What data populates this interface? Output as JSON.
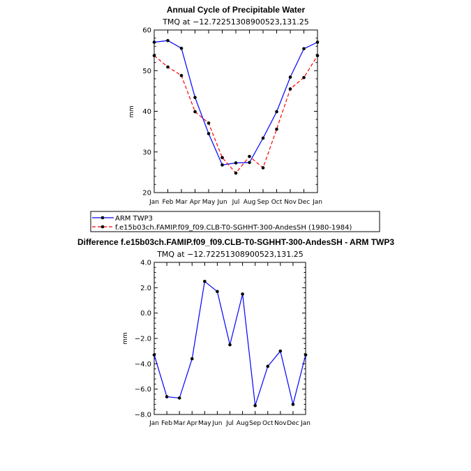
{
  "chart_data": [
    {
      "type": "line",
      "title": "Annual Cycle of Precipitable Water",
      "subtitle": "TMQ at −12.72251308900523,131.25",
      "ylabel": "mm",
      "ylim": [
        20,
        60
      ],
      "yticks": [
        "20",
        "30",
        "40",
        "50",
        "60"
      ],
      "categories": [
        "Jan",
        "Feb",
        "Mar",
        "Apr",
        "May",
        "Jun",
        "Jul",
        "Aug",
        "Sep",
        "Oct",
        "Nov",
        "Dec",
        "Jan"
      ],
      "series": [
        {
          "name": "ARM TWP3",
          "color": "#0000ff",
          "dash": "solid",
          "values": [
            57.0,
            57.4,
            55.5,
            43.4,
            34.5,
            26.8,
            27.3,
            27.4,
            33.4,
            39.9,
            48.4,
            55.4,
            57.0
          ]
        },
        {
          "name": "f.e15b03ch.FAMIP.f09_f09.CLB-T0-SGHHT-300-AndesSH (1980-1984)",
          "color": "#ff0000",
          "dash": "dashed",
          "values": [
            53.7,
            50.9,
            48.8,
            39.9,
            37.1,
            28.6,
            24.8,
            28.9,
            26.1,
            35.6,
            45.5,
            48.3,
            53.7
          ]
        }
      ]
    },
    {
      "type": "line",
      "title": "Difference f.e15b03ch.FAMIP.f09_f09.CLB-T0-SGHHT-300-AndesSH - ARM TWP3",
      "subtitle": "TMQ at −12.72251308900523,131.25",
      "ylabel": "mm",
      "ylim": [
        -8.0,
        4.0
      ],
      "yticks": [
        "−8.0",
        "−6.0",
        "−4.0",
        "−2.0",
        "0.0",
        "2.0",
        "4.0"
      ],
      "categories": [
        "Jan",
        "Feb",
        "Mar",
        "Apr",
        "May",
        "Jun",
        "Jul",
        "Aug",
        "Sep",
        "Oct",
        "Nov",
        "Dec",
        "Jan"
      ],
      "series": [
        {
          "color": "#0000ff",
          "dash": "solid",
          "values": [
            -3.3,
            -6.6,
            -6.7,
            -3.6,
            2.5,
            1.7,
            -2.5,
            1.5,
            -7.3,
            -4.2,
            -3.0,
            -7.2,
            -3.3
          ]
        }
      ]
    }
  ]
}
